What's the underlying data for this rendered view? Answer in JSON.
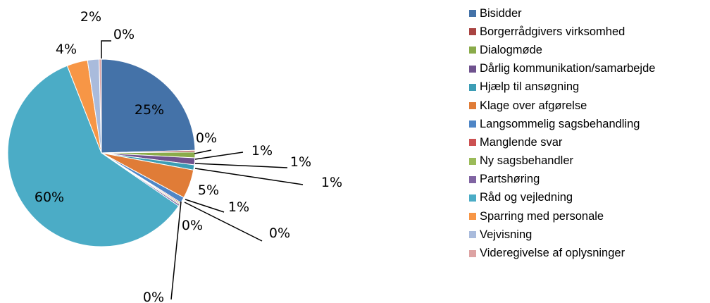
{
  "chart_data": {
    "type": "pie",
    "title": "",
    "legend_position": "right",
    "categories": [
      "Bisidder",
      "Borgerrådgivers virksomhed",
      "Dialogmøde",
      "Dårlig kommunikation/samarbejde",
      "Hjælp til ansøgning",
      "Klage over afgørelse",
      "Langsommelig sagsbehandling",
      "Manglende svar",
      "Ny sagsbehandler",
      "Partshøring",
      "Råd og vejledning",
      "Sparring med personale",
      "Vejvisning",
      "Videregivelse af oplysninger"
    ],
    "values": [
      24.7,
      0.3,
      1.0,
      1.2,
      0.9,
      5.0,
      1.0,
      0.2,
      0.2,
      0.3,
      59.8,
      3.6,
      2.0,
      0.4
    ],
    "data_labels": [
      "25%",
      "0%",
      "1%",
      "1%",
      "1%",
      "5%",
      "1%",
      "0%",
      "0%",
      "0%",
      "60%",
      "4%",
      "2%",
      "0%"
    ],
    "colors": [
      "#4472a8",
      "#a94442",
      "#8aab4a",
      "#6f528e",
      "#3c9db5",
      "#e07c37",
      "#4f86c6",
      "#cc5152",
      "#9bbb59",
      "#8064a2",
      "#4bacc6",
      "#f79646",
      "#a9bbdc",
      "#dda3a3"
    ]
  }
}
